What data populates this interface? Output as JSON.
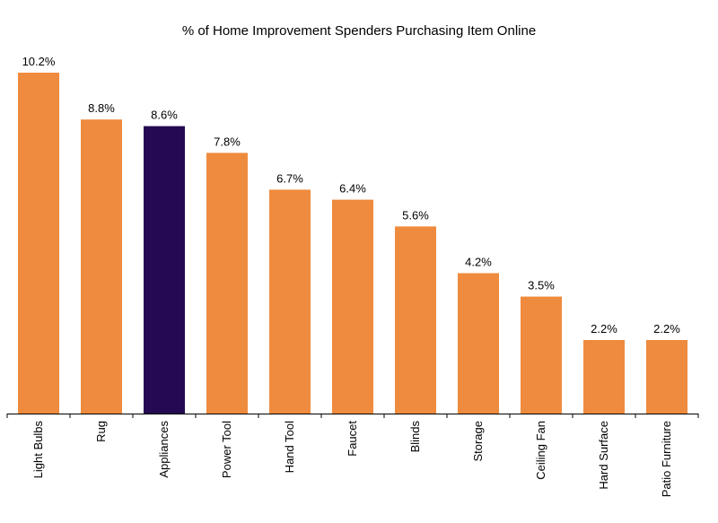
{
  "chart_data": {
    "type": "bar",
    "title": "% of Home Improvement Spenders Purchasing Item Online",
    "xlabel": "",
    "ylabel": "",
    "categories": [
      "Light Bulbs",
      "Rug",
      "Appliances",
      "Power Tool",
      "Hand Tool",
      "Faucet",
      "Blinds",
      "Storage",
      "Ceiling Fan",
      "Hard Surface",
      "Patio Furniture"
    ],
    "values": [
      10.2,
      8.8,
      8.6,
      7.8,
      6.7,
      6.4,
      5.6,
      4.2,
      3.5,
      2.2,
      2.2
    ],
    "data_labels": [
      "10.2%",
      "8.8%",
      "8.6%",
      "7.8%",
      "6.7%",
      "6.4%",
      "5.6%",
      "4.2%",
      "3.5%",
      "2.2%",
      "2.2%"
    ],
    "highlight_category": "Appliances",
    "ylim": [
      0,
      10.2
    ],
    "grid": false,
    "colors": {
      "default": "#EF8B3E",
      "highlight": "#250A52",
      "axis": "#000000"
    }
  }
}
